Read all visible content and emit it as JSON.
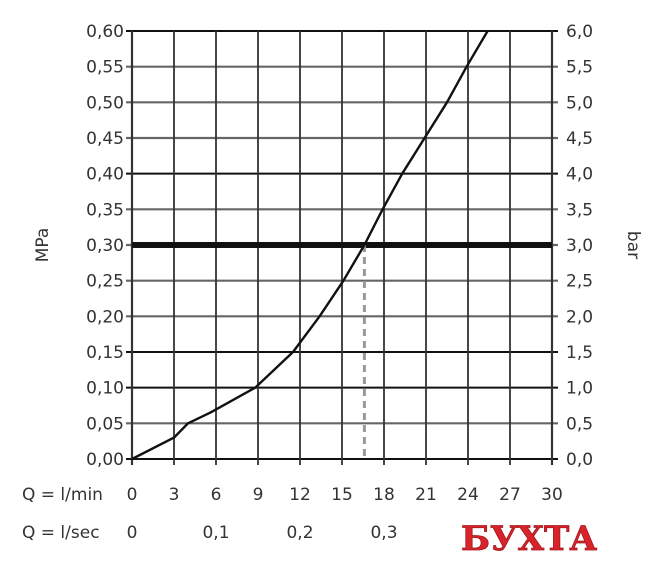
{
  "chart_data": {
    "type": "line",
    "title": "",
    "ylabel_left": "MPa",
    "ylabel_right": "bar",
    "xlabel_rows": [
      {
        "label": "Q = l/min",
        "ticks": [
          "0",
          "3",
          "6",
          "9",
          "12",
          "15",
          "18",
          "21",
          "24",
          "27",
          "30"
        ],
        "values": [
          0,
          3,
          6,
          9,
          12,
          15,
          18,
          21,
          24,
          27,
          30
        ]
      },
      {
        "label": "Q = l/sec",
        "ticks": [
          "0",
          "0,1",
          "0,2",
          "0,3"
        ],
        "values_lmin": [
          0,
          6,
          12,
          18
        ]
      }
    ],
    "xlim": [
      0,
      30
    ],
    "ylim": [
      0,
      0.6
    ],
    "yticks_left": [
      "0,00",
      "0,05",
      "0,10",
      "0,15",
      "0,20",
      "0,25",
      "0,30",
      "0,35",
      "0,40",
      "0,45",
      "0,50",
      "0,55",
      "0,60"
    ],
    "yticks_right": [
      "0,0",
      "0,5",
      "1,0",
      "1,5",
      "2,0",
      "2,5",
      "3,0",
      "3,5",
      "4,0",
      "4,5",
      "5,0",
      "5,5",
      "6,0"
    ],
    "grid": true,
    "series": [
      {
        "x": [
          0,
          3,
          4,
          5.6,
          8.8,
          11.5,
          13.4,
          15.1,
          16.6,
          17.9,
          19.3,
          20.9,
          22.5,
          23.9,
          25.4
        ],
        "y": [
          0,
          0.03,
          0.05,
          0.065,
          0.1,
          0.15,
          0.2,
          0.25,
          0.3,
          0.35,
          0.4,
          0.45,
          0.5,
          0.55,
          0.6
        ],
        "color": "#111111"
      }
    ],
    "reference_line": {
      "y": 0.3,
      "color": "#111111"
    },
    "dashed_drop": {
      "x": 16.6,
      "y": 0.3,
      "color": "#999999"
    }
  },
  "watermark": {
    "text": "БУХТА",
    "color": "#d8232a"
  }
}
